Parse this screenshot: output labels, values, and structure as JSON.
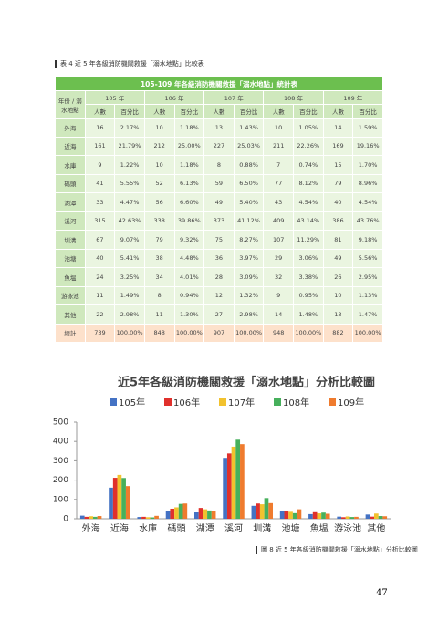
{
  "table_caption": "表 4  近 5 年各級消防機關救援「溺水地點」比較表",
  "table": {
    "title": "105-109 年各級消防機關救援「溺水地點」統計表",
    "corner": "年份 / 溺水地點",
    "years": [
      "105 年",
      "106 年",
      "107 年",
      "108 年",
      "109 年"
    ],
    "subheaders": [
      "人數",
      "百分比"
    ],
    "rows": [
      [
        "外海",
        "16",
        "2.17%",
        "10",
        "1.18%",
        "13",
        "1.43%",
        "10",
        "1.05%",
        "14",
        "1.59%"
      ],
      [
        "近海",
        "161",
        "21.79%",
        "212",
        "25.00%",
        "227",
        "25.03%",
        "211",
        "22.26%",
        "169",
        "19.16%"
      ],
      [
        "水庫",
        "9",
        "1.22%",
        "10",
        "1.18%",
        "8",
        "0.88%",
        "7",
        "0.74%",
        "15",
        "1.70%"
      ],
      [
        "碼頭",
        "41",
        "5.55%",
        "52",
        "6.13%",
        "59",
        "6.50%",
        "77",
        "8.12%",
        "79",
        "8.96%"
      ],
      [
        "湖潭",
        "33",
        "4.47%",
        "56",
        "6.60%",
        "49",
        "5.40%",
        "43",
        "4.54%",
        "40",
        "4.54%"
      ],
      [
        "溪河",
        "315",
        "42.63%",
        "338",
        "39.86%",
        "373",
        "41.12%",
        "409",
        "43.14%",
        "386",
        "43.76%"
      ],
      [
        "圳溝",
        "67",
        "9.07%",
        "79",
        "9.32%",
        "75",
        "8.27%",
        "107",
        "11.29%",
        "81",
        "9.18%"
      ],
      [
        "池塘",
        "40",
        "5.41%",
        "38",
        "4.48%",
        "36",
        "3.97%",
        "29",
        "3.06%",
        "49",
        "5.56%"
      ],
      [
        "魚塭",
        "24",
        "3.25%",
        "34",
        "4.01%",
        "28",
        "3.09%",
        "32",
        "3.38%",
        "26",
        "2.95%"
      ],
      [
        "游泳池",
        "11",
        "1.49%",
        "8",
        "0.94%",
        "12",
        "1.32%",
        "9",
        "0.95%",
        "10",
        "1.13%"
      ],
      [
        "其他",
        "22",
        "2.98%",
        "11",
        "1.30%",
        "27",
        "2.98%",
        "14",
        "1.48%",
        "13",
        "1.47%"
      ],
      [
        "總計",
        "739",
        "100.00%",
        "848",
        "100.00%",
        "907",
        "100.00%",
        "948",
        "100.00%",
        "882",
        "100.00%"
      ]
    ]
  },
  "chart_data": {
    "type": "bar",
    "title": "近5年各級消防機關救援「溺水地點」分析比較圖",
    "categories": [
      "外海",
      "近海",
      "水庫",
      "碼頭",
      "湖潭",
      "溪河",
      "圳溝",
      "池塘",
      "魚塭",
      "游泳池",
      "其他"
    ],
    "series": [
      {
        "name": "105年",
        "color": "#4472c4",
        "values": [
          16,
          161,
          9,
          41,
          33,
          315,
          67,
          40,
          24,
          11,
          22
        ]
      },
      {
        "name": "106年",
        "color": "#e0312c",
        "values": [
          10,
          212,
          10,
          52,
          56,
          338,
          79,
          38,
          34,
          8,
          11
        ]
      },
      {
        "name": "107年",
        "color": "#f2c22e",
        "values": [
          13,
          227,
          8,
          59,
          49,
          373,
          75,
          36,
          28,
          12,
          27
        ]
      },
      {
        "name": "108年",
        "color": "#47b05c",
        "values": [
          10,
          211,
          7,
          77,
          43,
          409,
          107,
          29,
          32,
          9,
          14
        ]
      },
      {
        "name": "109年",
        "color": "#ef7b2e",
        "values": [
          14,
          169,
          15,
          79,
          40,
          386,
          81,
          49,
          26,
          10,
          13
        ]
      }
    ],
    "ylim": [
      0,
      500
    ],
    "yticks": [
      0,
      100,
      200,
      300,
      400,
      500
    ]
  },
  "figure_caption": "圖 8  近 5 年各級消防機關救援「溺水地點」分析比較圖",
  "page_number": "47"
}
